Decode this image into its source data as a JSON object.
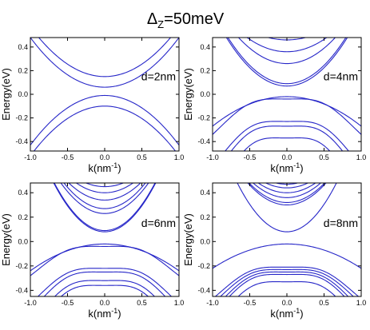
{
  "suptitle": {
    "symbol": "Δ",
    "subscript": "Z",
    "rest": "=50meV"
  },
  "chart_data": [
    {
      "type": "line",
      "annotation": "d=2nm",
      "xlabel": "k(nm",
      "xlabel_exp": "-1",
      "xlabel_end": ")",
      "ylabel": "Energy(eV)",
      "xlim": [
        -1.0,
        1.0
      ],
      "ylim": [
        -0.48,
        0.48
      ],
      "xticks": [
        "-1.0",
        "-0.5",
        "0.0",
        "0.5",
        "1.0"
      ],
      "yticks": [
        "-0.4",
        "-0.2",
        "0.0",
        "0.2",
        "0.4"
      ],
      "line_color": "#2626c8",
      "bands_conduction": [
        [
          0.15,
          0.42
        ],
        [
          0.06,
          0.42
        ]
      ],
      "bands_valence": [
        [
          -0.01,
          -0.42
        ],
        [
          -0.1,
          -0.42
        ]
      ]
    },
    {
      "type": "line",
      "annotation": "d=4nm",
      "xlabel": "k(nm",
      "xlabel_exp": "-1",
      "xlabel_end": ")",
      "ylabel": "Energy(eV)",
      "xlim": [
        -1.0,
        1.0
      ],
      "ylim": [
        -0.48,
        0.48
      ],
      "xticks": [
        "-1.0",
        "-0.5",
        "0.0",
        "0.5",
        "1.0"
      ],
      "yticks": [
        "-0.4",
        "-0.2",
        "0.0",
        "0.2",
        "0.4"
      ],
      "line_color": "#2626c8",
      "bands_conduction": [
        [
          0.07,
          0.62
        ],
        [
          0.09,
          0.62
        ],
        [
          0.26,
          0.52
        ],
        [
          0.36,
          0.42
        ],
        [
          0.46,
          0.32
        ]
      ],
      "bands_valence": [
        [
          -0.02,
          -0.25
        ],
        [
          -0.04,
          -0.3
        ],
        [
          -0.23,
          -0.38
        ],
        [
          -0.27,
          -0.42
        ],
        [
          -0.37,
          -0.5
        ]
      ]
    },
    {
      "type": "line",
      "annotation": "d=6nm",
      "xlabel": "k(nm",
      "xlabel_exp": "-1",
      "xlabel_end": ")",
      "ylabel": "Energy(eV)",
      "xlim": [
        -1.0,
        1.0
      ],
      "ylim": [
        -0.45,
        0.48
      ],
      "xticks": [
        "-1.0",
        "-0.5",
        "0.0",
        "0.5",
        "1.0"
      ],
      "yticks": [
        "-0.4",
        "-0.2",
        "0.0",
        "0.2",
        "0.4"
      ],
      "line_color": "#2626c8",
      "bands_conduction": [
        [
          0.08,
          0.85
        ],
        [
          0.09,
          0.85
        ],
        [
          0.23,
          0.72
        ],
        [
          0.27,
          0.7
        ],
        [
          0.34,
          0.6
        ],
        [
          0.4,
          0.55
        ],
        [
          0.45,
          0.48
        ]
      ],
      "bands_valence": [
        [
          -0.02,
          -0.22
        ],
        [
          -0.04,
          -0.24
        ],
        [
          -0.22,
          -0.29
        ],
        [
          -0.25,
          -0.32
        ],
        [
          -0.32,
          -0.36
        ],
        [
          -0.36,
          -0.39
        ]
      ]
    },
    {
      "type": "line",
      "annotation": "d=8nm",
      "xlabel": "k(nm",
      "xlabel_exp": "-1",
      "xlabel_end": ")",
      "ylabel": "Energy(eV)",
      "xlim": [
        -1.0,
        1.0
      ],
      "ylim": [
        -0.45,
        0.48
      ],
      "xticks": [
        "-1.0",
        "-0.5",
        "0.0",
        "0.5",
        "1.0"
      ],
      "yticks": [
        "-0.4",
        "-0.2",
        "0.0",
        "0.2",
        "0.4"
      ],
      "line_color": "#2626c8",
      "bands_conduction": [
        [
          0.08,
          0.9
        ],
        [
          0.3,
          0.65
        ],
        [
          0.32,
          0.62
        ],
        [
          0.36,
          0.58
        ],
        [
          0.4,
          0.54
        ],
        [
          0.44,
          0.5
        ],
        [
          0.47,
          0.48
        ]
      ],
      "bands_valence": [
        [
          -0.02,
          -0.2
        ],
        [
          -0.21,
          -0.26
        ],
        [
          -0.23,
          -0.28
        ],
        [
          -0.25,
          -0.31
        ],
        [
          -0.27,
          -0.33
        ],
        [
          -0.33,
          -0.36
        ]
      ]
    }
  ]
}
